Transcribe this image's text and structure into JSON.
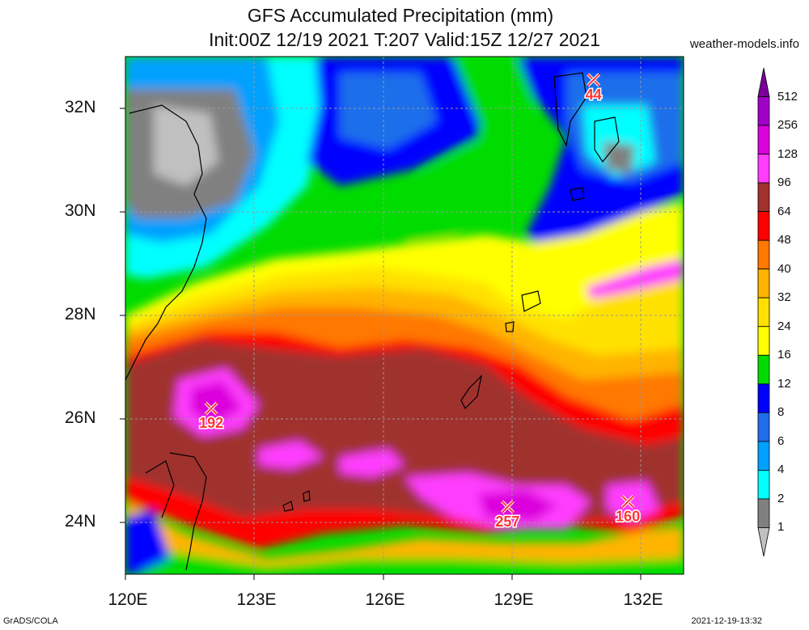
{
  "title_line1": "GFS Accumulated Precipitation (mm)",
  "title_line2": "Init:00Z 12/19 2021 T:207 Valid:15Z 12/27 2021",
  "site": "weather-models.info",
  "footer_left": "GrADS/COLA",
  "footer_right": "2021-12-19-13:32",
  "lat_labels": [
    "32N",
    "30N",
    "28N",
    "26N",
    "24N"
  ],
  "lon_labels": [
    "120E",
    "123E",
    "126E",
    "129E",
    "132E"
  ],
  "colorbar": {
    "levels": [
      "512",
      "256",
      "128",
      "96",
      "64",
      "48",
      "40",
      "32",
      "24",
      "16",
      "12",
      "8",
      "6",
      "4",
      "2",
      "1"
    ],
    "colors": [
      "#7a0099",
      "#a000c8",
      "#dc00dc",
      "#ff3cff",
      "#a0312d",
      "#ff0000",
      "#ff7800",
      "#ffb400",
      "#ffe100",
      "#ffff00",
      "#00dc00",
      "#0000ff",
      "#1e6eeb",
      "#00a0ff",
      "#00ffff",
      "#808080",
      "#c0c0c0"
    ]
  },
  "markers": [
    {
      "value": "44",
      "lon": 130.9,
      "lat": 32.55
    },
    {
      "value": "192",
      "lon": 122.0,
      "lat": 26.2
    },
    {
      "value": "257",
      "lon": 128.9,
      "lat": 24.3
    },
    {
      "value": "160",
      "lon": 131.7,
      "lat": 24.4
    }
  ]
}
